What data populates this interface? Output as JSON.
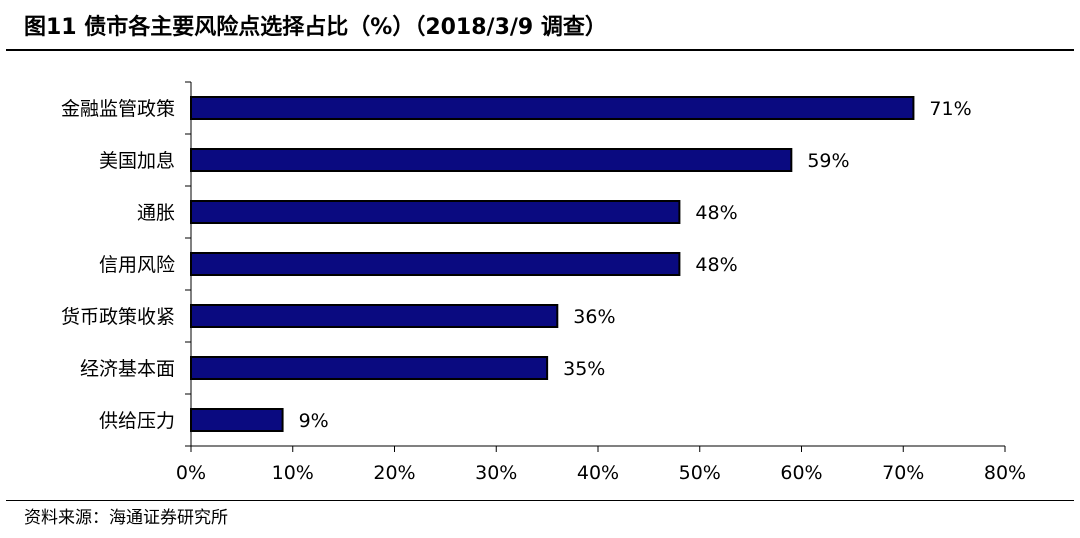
{
  "title": "图11 债市各主要风险点选择占比（%）（2018/3/9 调查）",
  "source": "资料来源：海通证券研究所",
  "colors": {
    "bar_fill": "#0a0a80",
    "bar_stroke": "#000000",
    "axis": "#000000"
  },
  "chart_data": {
    "type": "bar",
    "orientation": "horizontal",
    "categories": [
      "金融监管政策",
      "美国加息",
      "通胀",
      "信用风险",
      "货币政策收紧",
      "经济基本面",
      "供给压力"
    ],
    "values": [
      71,
      59,
      48,
      48,
      36,
      35,
      9
    ],
    "value_labels": [
      "71%",
      "59%",
      "48%",
      "48%",
      "36%",
      "35%",
      "9%"
    ],
    "unit": "%",
    "xlim": [
      0,
      80
    ],
    "xticks": [
      0,
      10,
      20,
      30,
      40,
      50,
      60,
      70,
      80
    ],
    "xtick_labels": [
      "0%",
      "10%",
      "20%",
      "30%",
      "40%",
      "50%",
      "60%",
      "70%",
      "80%"
    ],
    "grid": false,
    "legend": "none"
  }
}
